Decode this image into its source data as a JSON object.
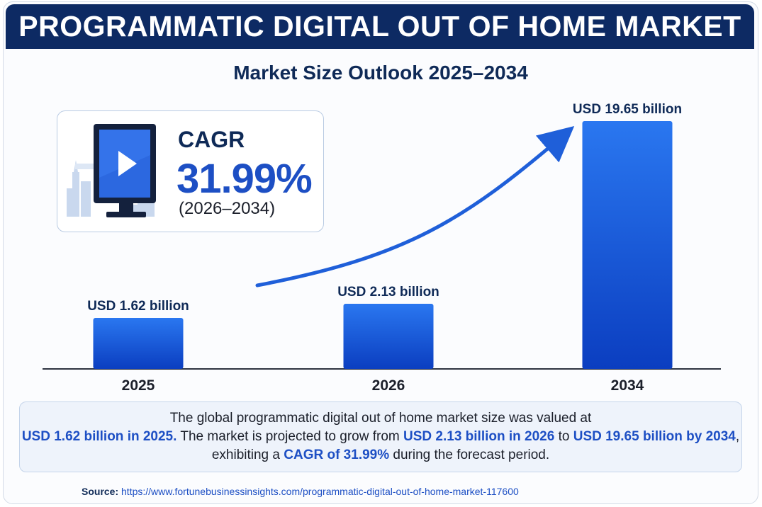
{
  "header": {
    "title": "PROGRAMMATIC DIGITAL OUT OF HOME MARKET"
  },
  "subtitle": "Market Size Outlook 2025–2034",
  "cagr_card": {
    "label": "CAGR",
    "value": "31.99%",
    "period": "(2026–2034)",
    "icon": "digital-billboard-icon"
  },
  "colors": {
    "navy": "#0d2a63",
    "accent_blue": "#1d4fc4",
    "bar_top": "#2a77f0",
    "bar_bottom": "#0b3ec0",
    "arrow": "#1f5fd9"
  },
  "chart_data": {
    "type": "bar",
    "categories": [
      "2025",
      "2026",
      "2034"
    ],
    "values": [
      1.62,
      2.13,
      19.65
    ],
    "value_labels": [
      "USD 1.62 billion",
      "USD 2.13 billion",
      "USD 19.65 billion"
    ],
    "xlabel": "",
    "ylabel": "",
    "unit": "USD billion",
    "grid": false,
    "axis": "x-baseline only"
  },
  "description": {
    "line1": "The global programmatic digital out of home market size was valued at",
    "value_2025": "USD 1.62 billion in 2025.",
    "mid1": " The market is projected to grow from ",
    "value_2026": "USD 2.13 billion in 2026",
    "mid2": " to ",
    "value_2034": "USD 19.65 billion by 2034",
    "mid3": ", exhibiting a ",
    "cagr_text": "CAGR of 31.99%",
    "end": " during the forecast period."
  },
  "source": {
    "label": "Source:",
    "url": "https://www.fortunebusinessinsights.com/programmatic-digital-out-of-home-market-117600"
  }
}
